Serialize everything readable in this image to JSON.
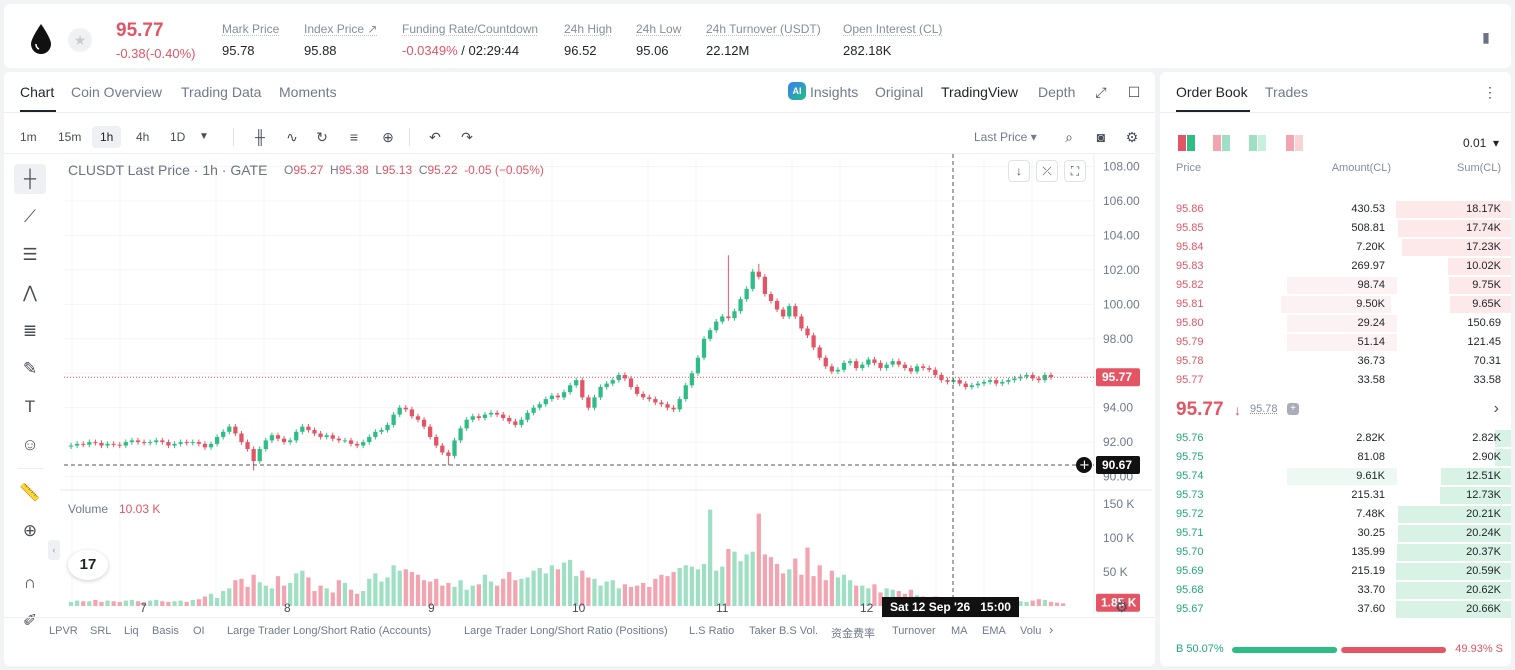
{
  "ticker": {
    "price": "95.77",
    "change": "-0.38(-0.40%)",
    "stats": [
      {
        "label": "Mark Price",
        "value": "95.78"
      },
      {
        "label": "Index Price ↗",
        "value": "95.88"
      },
      {
        "label": "Funding Rate/Countdown",
        "value_neg": "-0.0349%",
        "value": " / 02:29:44"
      },
      {
        "label": "24h High",
        "value": "96.52"
      },
      {
        "label": "24h Low",
        "value": "95.06"
      },
      {
        "label": "24h Turnover (USDT)",
        "value": "22.12M"
      },
      {
        "label": "Open Interest (CL)",
        "value": "282.18K"
      }
    ]
  },
  "chart_tabs": [
    "Chart",
    "Coin Overview",
    "Trading Data",
    "Moments"
  ],
  "view_tabs": [
    "Insights",
    "Original",
    "TradingView",
    "Depth"
  ],
  "ai_badge": "AI",
  "timeframes": [
    "1m",
    "15m",
    "1h",
    "4h",
    "1D"
  ],
  "price_source": "Last Price",
  "legend": {
    "title": "CLUSDT Last Price · 1h · GATE",
    "o_label": "O",
    "o": "95.27",
    "h_label": "H",
    "h": "95.38",
    "l_label": "L",
    "l": "95.13",
    "c_label": "C",
    "c": "95.22",
    "chg": "-0.05 (−0.05%)"
  },
  "volume_label": "Volume",
  "volume_value": "10.03 K",
  "tv_logo": "17",
  "crosshair": {
    "price": "90.67",
    "time": "Sat 12 Sep '26",
    "hour": "15:00"
  },
  "chart_data": {
    "type": "candlestick",
    "y_ticks": [
      "108.00",
      "106.00",
      "104.00",
      "102.00",
      "100.00",
      "98.00",
      "96.00",
      "94.00",
      "92.00",
      "90.00"
    ],
    "y_range": [
      89.8,
      108.5
    ],
    "vol_ticks": [
      "150 K",
      "100 K",
      "50 K"
    ],
    "vol_range": [
      0,
      165
    ],
    "x_ticks": [
      "7",
      "8",
      "9",
      "10",
      "11",
      "12"
    ],
    "last_price": "95.77",
    "last_volume": "1.85 K",
    "candles_close": [
      91.8,
      91.9,
      91.85,
      92.0,
      91.95,
      91.8,
      91.9,
      91.85,
      91.8,
      92.0,
      92.1,
      92.0,
      91.95,
      92.0,
      92.1,
      92.0,
      91.8,
      91.9,
      92.0,
      91.95,
      92.0,
      91.9,
      91.7,
      91.9,
      92.3,
      92.6,
      92.9,
      92.5,
      92.0,
      91.6,
      90.9,
      91.6,
      92.1,
      92.4,
      92.2,
      92.0,
      92.1,
      92.6,
      92.9,
      92.7,
      92.5,
      92.3,
      92.4,
      92.2,
      92.1,
      92.1,
      91.9,
      91.8,
      92.0,
      92.3,
      92.6,
      92.7,
      93.0,
      93.6,
      94.0,
      93.9,
      93.5,
      93.3,
      92.9,
      92.3,
      91.8,
      91.4,
      91.2,
      92.1,
      92.8,
      93.3,
      93.5,
      93.4,
      93.6,
      93.7,
      93.6,
      93.4,
      93.2,
      93.0,
      93.3,
      93.7,
      94.0,
      94.2,
      94.5,
      94.7,
      94.6,
      94.9,
      95.3,
      95.6,
      94.6,
      94.0,
      94.6,
      95.2,
      95.4,
      95.6,
      95.9,
      95.7,
      95.2,
      94.8,
      94.6,
      94.5,
      94.3,
      94.2,
      94.0,
      93.9,
      94.5,
      95.3,
      96.0,
      96.9,
      98.0,
      98.5,
      99.0,
      99.3,
      99.2,
      99.6,
      100.3,
      100.9,
      101.9,
      101.6,
      100.6,
      100.2,
      99.7,
      99.3,
      99.9,
      99.3,
      98.6,
      98.2,
      97.5,
      96.9,
      96.4,
      96.1,
      96.2,
      96.6,
      96.7,
      96.3,
      96.5,
      96.8,
      96.6,
      96.3,
      96.5,
      96.7,
      96.5,
      96.3,
      96.1,
      96.4,
      96.3,
      96.2,
      95.9,
      95.6,
      95.5,
      95.6,
      95.4,
      95.2,
      95.3,
      95.4,
      95.5,
      95.6,
      95.4,
      95.5,
      95.6,
      95.7,
      95.8,
      95.9,
      95.7,
      95.6,
      95.9,
      95.77
    ],
    "volumes": [
      6,
      8,
      7,
      7,
      9,
      6,
      8,
      7,
      6,
      8,
      9,
      7,
      6,
      8,
      9,
      7,
      6,
      7,
      8,
      6,
      9,
      10,
      14,
      18,
      12,
      22,
      26,
      38,
      40,
      28,
      46,
      35,
      30,
      26,
      44,
      30,
      34,
      48,
      52,
      42,
      22,
      30,
      26,
      20,
      38,
      34,
      24,
      18,
      22,
      40,
      48,
      36,
      42,
      60,
      52,
      54,
      50,
      46,
      38,
      36,
      40,
      30,
      34,
      28,
      38,
      24,
      30,
      32,
      46,
      36,
      30,
      40,
      50,
      38,
      40,
      42,
      52,
      56,
      48,
      60,
      54,
      64,
      68,
      44,
      52,
      42,
      40,
      30,
      36,
      38,
      26,
      32,
      28,
      30,
      34,
      28,
      40,
      46,
      44,
      50,
      56,
      60,
      58,
      54,
      62,
      142,
      52,
      58,
      84,
      80,
      66,
      76,
      80,
      136,
      76,
      72,
      62,
      48,
      54,
      70,
      46,
      86,
      44,
      60,
      38,
      52,
      42,
      46,
      38,
      30,
      30,
      26,
      32,
      20,
      26,
      24,
      22,
      18,
      24,
      16,
      14,
      12,
      14,
      10,
      12,
      8,
      10,
      12,
      8,
      7,
      9,
      6,
      7,
      8,
      6,
      9,
      7,
      6,
      8,
      10,
      9,
      6,
      5,
      4
    ]
  },
  "indicators": [
    "LPVR",
    "SRL",
    "Liq",
    "Basis",
    "OI",
    "Large Trader Long/Short Ratio (Accounts)",
    "Large Trader Long/Short Ratio (Positions)",
    "L.S Ratio",
    "Taker B.S Vol.",
    "资金费率",
    "Turnover",
    "MA",
    "EMA",
    "Volu"
  ],
  "order_book": {
    "tabs": [
      "Order Book",
      "Trades"
    ],
    "tick_size": "0.01",
    "headers": {
      "price": "Price",
      "amount": "Amount(CL)",
      "sum": "Sum(CL)"
    },
    "asks": [
      {
        "price": "95.86",
        "amount": "430.53",
        "sum": "18.17K",
        "depth": 1.0,
        "amt": 0
      },
      {
        "price": "95.85",
        "amount": "508.81",
        "sum": "17.74K",
        "depth": 0.98,
        "amt": 0
      },
      {
        "price": "95.84",
        "amount": "7.20K",
        "sum": "17.23K",
        "depth": 0.95,
        "amt": 0
      },
      {
        "price": "95.83",
        "amount": "269.97",
        "sum": "10.02K",
        "depth": 0.55,
        "amt": 0
      },
      {
        "price": "95.82",
        "amount": "98.74",
        "sum": "9.75K",
        "depth": 0.54,
        "amt": 0.38
      },
      {
        "price": "95.81",
        "amount": "9.50K",
        "sum": "9.65K",
        "depth": 0.53,
        "amt": 0.36
      },
      {
        "price": "95.80",
        "amount": "29.24",
        "sum": "150.69",
        "depth": 0.0,
        "amt": 0.38
      },
      {
        "price": "95.79",
        "amount": "51.14",
        "sum": "121.45",
        "depth": 0.0,
        "amt": 0.38
      },
      {
        "price": "95.78",
        "amount": "36.73",
        "sum": "70.31",
        "depth": 0.0,
        "amt": 0
      },
      {
        "price": "95.77",
        "amount": "33.58",
        "sum": "33.58",
        "depth": 0.0,
        "amt": 0
      }
    ],
    "mid": {
      "price": "95.77",
      "arrow": "↓",
      "mark": "95.78",
      "shield": "+"
    },
    "bids": [
      {
        "price": "95.76",
        "amount": "2.82K",
        "sum": "2.82K",
        "depth": 0.14,
        "amt": 0
      },
      {
        "price": "95.75",
        "amount": "81.08",
        "sum": "2.90K",
        "depth": 0.14,
        "amt": 0
      },
      {
        "price": "95.74",
        "amount": "9.61K",
        "sum": "12.51K",
        "depth": 0.61,
        "amt": 0.38
      },
      {
        "price": "95.73",
        "amount": "215.31",
        "sum": "12.73K",
        "depth": 0.62,
        "amt": 0
      },
      {
        "price": "95.72",
        "amount": "7.48K",
        "sum": "20.21K",
        "depth": 0.98,
        "amt": 0
      },
      {
        "price": "95.71",
        "amount": "30.25",
        "sum": "20.24K",
        "depth": 0.98,
        "amt": 0
      },
      {
        "price": "95.70",
        "amount": "135.99",
        "sum": "20.37K",
        "depth": 0.99,
        "amt": 0
      },
      {
        "price": "95.69",
        "amount": "215.19",
        "sum": "20.59K",
        "depth": 1.0,
        "amt": 0
      },
      {
        "price": "95.68",
        "amount": "33.70",
        "sum": "20.62K",
        "depth": 1.0,
        "amt": 0
      },
      {
        "price": "95.67",
        "amount": "37.60",
        "sum": "20.66K",
        "depth": 1.0,
        "amt": 0
      }
    ],
    "buy_pct": "B 50.07%",
    "sell_pct": "49.93% S",
    "buy_ratio": 0.5007
  },
  "colors": {
    "up": "#2ebd85",
    "down": "#e35565",
    "up_bar": "#9fdfc4",
    "down_bar": "#f2a5b0"
  }
}
